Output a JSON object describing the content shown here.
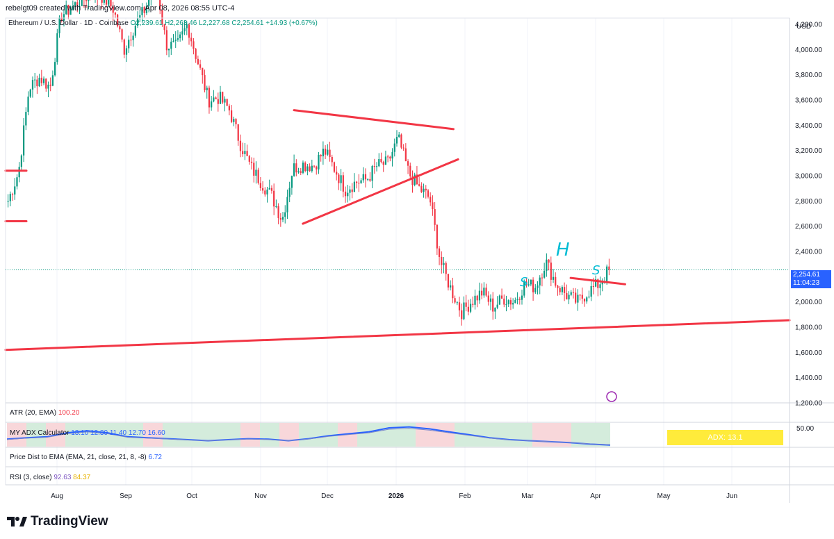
{
  "header": {
    "credit": "rebelgt09 created with TradingView.com, Apr 08, 2026 08:55 UTC-4"
  },
  "legend": {
    "symbol": "Ethereum / U.S. Dollar · 1D · Coinbase",
    "open": "O2,239.61",
    "high": "H2,263.46",
    "low": "L2,227.68",
    "close": "C2,254.61",
    "change": "+14.93 (+0.67%)"
  },
  "price_axis": {
    "currency": "USD",
    "current_price": "2,254.61",
    "countdown": "11:04:23",
    "adx_level": "50.00"
  },
  "annotations": {
    "left_shoulder": "S",
    "head": "H",
    "right_shoulder": "S"
  },
  "indicators": {
    "atr": {
      "label": "ATR (20, EMA)",
      "value": "100.20"
    },
    "adx": {
      "label": "MY ADX Calculator",
      "values": [
        "13.10",
        "12.30",
        "11.40",
        "12.70",
        "16.60"
      ],
      "box": "ADX: 13.1"
    },
    "pdist": {
      "label": "Price Dist to EMA (EMA, 21, close, 21, 8, -8)",
      "value": "6.72"
    },
    "rsi": {
      "label": "RSI (3, close)",
      "v1": "92.63",
      "v2": "84.37"
    }
  },
  "colors": {
    "up": "#089981",
    "down": "#f23645",
    "drawing": "#f23645",
    "annot": "#00bcd4",
    "accent": "#2962ff"
  },
  "brand": {
    "name": "TradingView",
    "logo": "tradingview-logo-icon"
  },
  "chart_data": {
    "type": "candlestick",
    "title": "Ethereum / U.S. Dollar · 1D · Coinbase",
    "x_tick_labels": [
      "Aug",
      "Sep",
      "Oct",
      "Nov",
      "Dec",
      "2026",
      "Feb",
      "Mar",
      "Apr",
      "May",
      "Jun"
    ],
    "y_tick_labels": [
      "1,200.00",
      "1,400.00",
      "1,600.00",
      "1,800.00",
      "2,000.00",
      "2,200.00",
      "2,400.00",
      "2,600.00",
      "2,800.00",
      "3,000.00",
      "3,200.00",
      "3,400.00",
      "3,600.00",
      "3,800.00",
      "4,000.00",
      "4,200.00"
    ],
    "ylim": [
      1200,
      4250
    ],
    "close_series": [
      2800,
      3030,
      3700,
      3780,
      3700,
      4270,
      4330,
      4400,
      4440,
      4420,
      4320,
      4000,
      4190,
      4320,
      4550,
      4040,
      4020,
      4200,
      3900,
      3600,
      3620,
      3520,
      3260,
      3070,
      2950,
      2840,
      2650,
      3060,
      3090,
      3080,
      3200,
      3050,
      2890,
      2950,
      2970,
      3080,
      3100,
      3300,
      3020,
      2900,
      2820,
      2320,
      2100,
      1920,
      2010,
      2080,
      1960,
      2030,
      2000,
      2140,
      2120,
      2320,
      2140,
      2050,
      2000,
      2080,
      2140,
      2254.61
    ],
    "trendlines": [
      {
        "name": "triangle-upper",
        "from": [
          "Nov 16",
          3520
        ],
        "to": [
          "Jan 26",
          3370
        ]
      },
      {
        "name": "triangle-lower",
        "from": [
          "Nov 20",
          2620
        ],
        "to": [
          "Jan 28",
          3130
        ]
      },
      {
        "name": "neckline",
        "from": [
          "Mar 20",
          2190
        ],
        "to": [
          "Apr 14",
          2140
        ]
      },
      {
        "name": "support",
        "from": [
          "Jul 10",
          1620
        ],
        "to": [
          "Jun 30",
          1855
        ]
      },
      {
        "name": "resistance-left-upper",
        "value": 3040
      },
      {
        "name": "resistance-left-lower",
        "value": 2640
      }
    ],
    "adx_series": [
      25,
      28,
      30,
      38,
      42,
      38,
      30,
      28,
      26,
      24,
      22,
      24,
      26,
      25,
      22,
      26,
      32,
      36,
      40,
      48,
      50,
      46,
      40,
      34,
      28,
      24,
      22,
      20,
      18,
      15,
      13.1
    ]
  }
}
